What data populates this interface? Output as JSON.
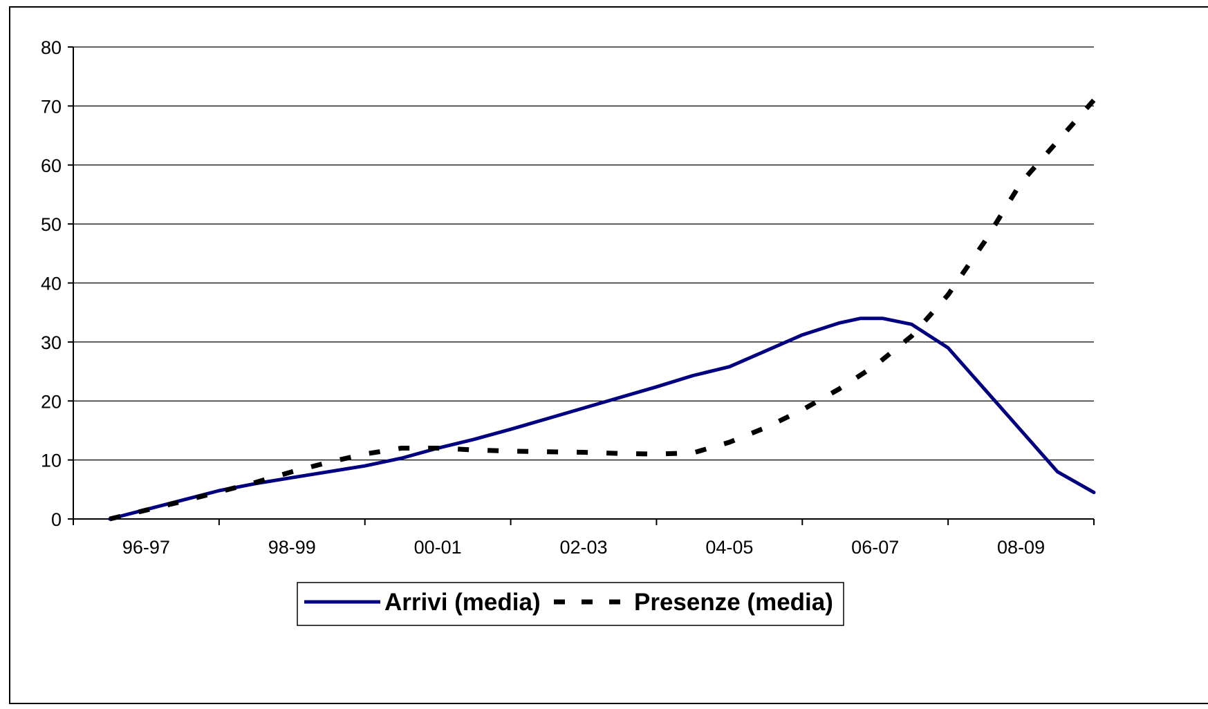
{
  "chart_data": {
    "type": "line",
    "title": "",
    "xlabel": "",
    "ylabel": "",
    "x_tick_labels": [
      "96-97",
      "98-99",
      "00-01",
      "02-03",
      "04-05",
      "06-07",
      "08-09"
    ],
    "x_range": [
      0,
      14
    ],
    "ylim": [
      0,
      80
    ],
    "y_ticks": [
      0,
      10,
      20,
      30,
      40,
      50,
      60,
      70,
      80
    ],
    "grid": "horizontal",
    "legend_position": "bottom",
    "series": [
      {
        "name": "Arrivi (media)",
        "color": "#000080",
        "style": "solid",
        "points": [
          [
            0.5,
            0
          ],
          [
            1.0,
            1.6
          ],
          [
            1.5,
            3.2
          ],
          [
            2.0,
            4.8
          ],
          [
            2.5,
            6.0
          ],
          [
            3.0,
            7.0
          ],
          [
            3.5,
            8.0
          ],
          [
            4.0,
            9.0
          ],
          [
            4.5,
            10.3
          ],
          [
            5.0,
            12.0
          ],
          [
            5.5,
            13.5
          ],
          [
            6.0,
            15.2
          ],
          [
            6.5,
            17.0
          ],
          [
            7.0,
            18.8
          ],
          [
            7.5,
            20.6
          ],
          [
            8.0,
            22.4
          ],
          [
            8.5,
            24.3
          ],
          [
            9.0,
            25.8
          ],
          [
            9.5,
            28.5
          ],
          [
            10.0,
            31.2
          ],
          [
            10.5,
            33.2
          ],
          [
            10.8,
            34.0
          ],
          [
            11.1,
            34.0
          ],
          [
            11.5,
            33.0
          ],
          [
            12.0,
            29.0
          ],
          [
            12.5,
            22.0
          ],
          [
            13.0,
            15.0
          ],
          [
            13.5,
            8.0
          ],
          [
            14.0,
            4.5
          ]
        ]
      },
      {
        "name": "Presenze (media)",
        "color": "#000000",
        "style": "dashed",
        "points": [
          [
            0.5,
            0
          ],
          [
            1.0,
            1.5
          ],
          [
            1.5,
            3.0
          ],
          [
            2.0,
            4.6
          ],
          [
            2.5,
            6.2
          ],
          [
            3.0,
            8.0
          ],
          [
            3.5,
            9.6
          ],
          [
            4.0,
            11.0
          ],
          [
            4.5,
            12.0
          ],
          [
            5.0,
            12.0
          ],
          [
            5.5,
            11.7
          ],
          [
            6.0,
            11.5
          ],
          [
            6.5,
            11.4
          ],
          [
            7.0,
            11.3
          ],
          [
            7.5,
            11.1
          ],
          [
            8.0,
            11.0
          ],
          [
            8.5,
            11.2
          ],
          [
            9.0,
            13.0
          ],
          [
            9.5,
            15.5
          ],
          [
            10.0,
            18.5
          ],
          [
            10.5,
            22.0
          ],
          [
            11.0,
            26.0
          ],
          [
            11.5,
            31.0
          ],
          [
            12.0,
            38.0
          ],
          [
            12.5,
            47.0
          ],
          [
            13.0,
            57.0
          ],
          [
            13.5,
            64.0
          ],
          [
            14.0,
            71.0
          ]
        ]
      }
    ]
  }
}
